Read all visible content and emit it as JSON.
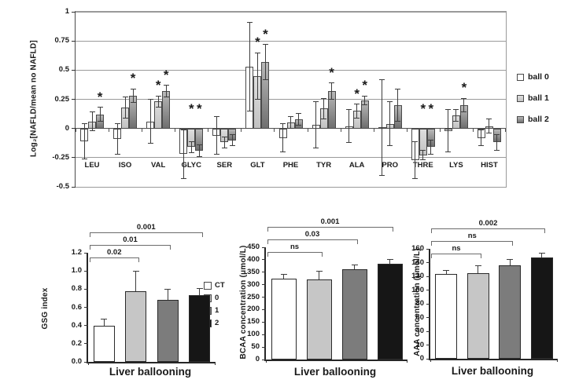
{
  "chart_data": [
    {
      "id": "nafld-amino-acids",
      "type": "bar",
      "title": "",
      "ylabel": "Log₂[NAFLD/mean no NAFLD]",
      "xlabel": "",
      "ylim": [
        -0.5,
        1
      ],
      "grid": true,
      "ytick_labels": [
        "1",
        "0.75",
        "0.5",
        "0.25",
        "0",
        "-0.25",
        "-0.5"
      ],
      "categories": [
        "LEU",
        "ISO",
        "VAL",
        "GLYC",
        "SER",
        "GLT",
        "PHE",
        "TYR",
        "ALA",
        "PRO",
        "THRE",
        "LYS",
        "HIST"
      ],
      "series": [
        {
          "name": "ball 0",
          "color": "#ffffff",
          "values": [
            -0.11,
            -0.09,
            0.06,
            -0.22,
            -0.06,
            0.53,
            -0.08,
            0.03,
            0.02,
            0.01,
            -0.27,
            -0.02,
            -0.08
          ],
          "errors": [
            0.15,
            0.13,
            0.19,
            0.21,
            0.16,
            0.38,
            0.12,
            0.2,
            0.14,
            0.41,
            0.16,
            0.18,
            0.07
          ]
        },
        {
          "name": "ball 1",
          "color": "#dedede",
          "color2": "#c2c2c2",
          "values": [
            0.06,
            0.18,
            0.23,
            -0.16,
            -0.12,
            0.45,
            0.05,
            0.17,
            0.15,
            0.04,
            -0.23,
            0.11,
            0.02
          ],
          "errors": [
            0.08,
            0.09,
            0.05,
            0.05,
            0.05,
            0.2,
            0.05,
            0.09,
            0.06,
            0.19,
            0.04,
            0.05,
            0.06
          ]
        },
        {
          "name": "ball 2",
          "color": "#b9b9b9",
          "color2": "#6f6f6f",
          "values": [
            0.12,
            0.28,
            0.32,
            -0.19,
            -0.1,
            0.57,
            0.08,
            0.32,
            0.24,
            0.2,
            -0.16,
            0.2,
            -0.12
          ],
          "errors": [
            0.06,
            0.06,
            0.05,
            0.05,
            0.05,
            0.15,
            0.05,
            0.07,
            0.04,
            0.14,
            0.06,
            0.06,
            0.07
          ]
        }
      ],
      "significance_stars": [
        [
          0,
          0,
          1
        ],
        [
          0,
          0,
          1
        ],
        [
          0,
          1,
          1
        ],
        [
          0,
          1,
          1
        ],
        [
          0,
          0,
          0
        ],
        [
          0,
          1,
          1
        ],
        [
          0,
          0,
          0
        ],
        [
          0,
          0,
          1
        ],
        [
          0,
          1,
          1
        ],
        [
          0,
          0,
          0
        ],
        [
          0,
          1,
          1
        ],
        [
          0,
          0,
          1
        ],
        [
          0,
          0,
          0
        ]
      ],
      "legend": {
        "position": "right",
        "items": [
          {
            "label": "ball 0",
            "color": "#ffffff"
          },
          {
            "label": "ball 1",
            "color": "#dedede",
            "color2": "#c2c2c2"
          },
          {
            "label": "ball 2",
            "color": "#b9b9b9",
            "color2": "#6f6f6f"
          }
        ]
      }
    },
    {
      "id": "gsg-index",
      "type": "bar",
      "ylabel": "GSG index",
      "xlabel": "Liver ballooning",
      "ylim": [
        0,
        1.2
      ],
      "grid": false,
      "ytick_labels": [
        "1.2",
        "1.0",
        "0.8",
        "0.6",
        "0.4",
        "0.2",
        "0.0"
      ],
      "categories": [
        "CT",
        "0",
        "1",
        "2"
      ],
      "values": [
        0.4,
        0.78,
        0.68,
        0.73
      ],
      "errors": [
        0.07,
        0.22,
        0.12,
        0.08
      ],
      "colors": [
        "#ffffff",
        "#c6c6c6",
        "#7c7c7c",
        "#161616"
      ],
      "brackets": [
        {
          "from": 0,
          "to": 1,
          "label": "0.02"
        },
        {
          "from": 0,
          "to": 2,
          "label": "0.01"
        },
        {
          "from": 0,
          "to": 3,
          "label": "0.001"
        }
      ],
      "legend": {
        "position": "right",
        "items": [
          {
            "label": "CT",
            "color": "#ffffff"
          },
          {
            "label": "0",
            "color": "#c6c6c6"
          },
          {
            "label": "1",
            "color": "#7c7c7c"
          },
          {
            "label": "2",
            "color": "#161616"
          }
        ]
      }
    },
    {
      "id": "bcaa-concentration",
      "type": "bar",
      "ylabel": "BCAA concentration (μmol/L)",
      "xlabel": "Liver ballooning",
      "ylim": [
        0,
        450
      ],
      "grid": false,
      "ytick_labels": [
        "450",
        "400",
        "350",
        "300",
        "250",
        "200",
        "150",
        "100",
        "50",
        "0"
      ],
      "categories": [
        "CT",
        "0",
        "1",
        "2"
      ],
      "values": [
        325,
        322,
        362,
        385
      ],
      "errors": [
        15,
        32,
        18,
        15
      ],
      "colors": [
        "#ffffff",
        "#c6c6c6",
        "#7c7c7c",
        "#161616"
      ],
      "brackets": [
        {
          "from": 0,
          "to": 1,
          "label": "ns"
        },
        {
          "from": 0,
          "to": 2,
          "label": "0.03"
        },
        {
          "from": 0,
          "to": 3,
          "label": "0.001"
        }
      ]
    },
    {
      "id": "aaa-concentration",
      "type": "bar",
      "ylabel": "AAA concentration (μmol/L)",
      "xlabel": "Liver ballooning",
      "ylim": [
        0,
        160
      ],
      "grid": false,
      "ytick_labels": [
        "160",
        "140",
        "120",
        "100",
        "80",
        "60",
        "40",
        "20",
        "0"
      ],
      "categories": [
        "CT",
        "0",
        "1",
        "2"
      ],
      "values": [
        124,
        125,
        136,
        147
      ],
      "errors": [
        5,
        11,
        9,
        7
      ],
      "colors": [
        "#ffffff",
        "#c6c6c6",
        "#7c7c7c",
        "#161616"
      ],
      "brackets": [
        {
          "from": 0,
          "to": 1,
          "label": "ns"
        },
        {
          "from": 0,
          "to": 2,
          "label": "ns"
        },
        {
          "from": 0,
          "to": 3,
          "label": "0.002"
        }
      ]
    }
  ]
}
